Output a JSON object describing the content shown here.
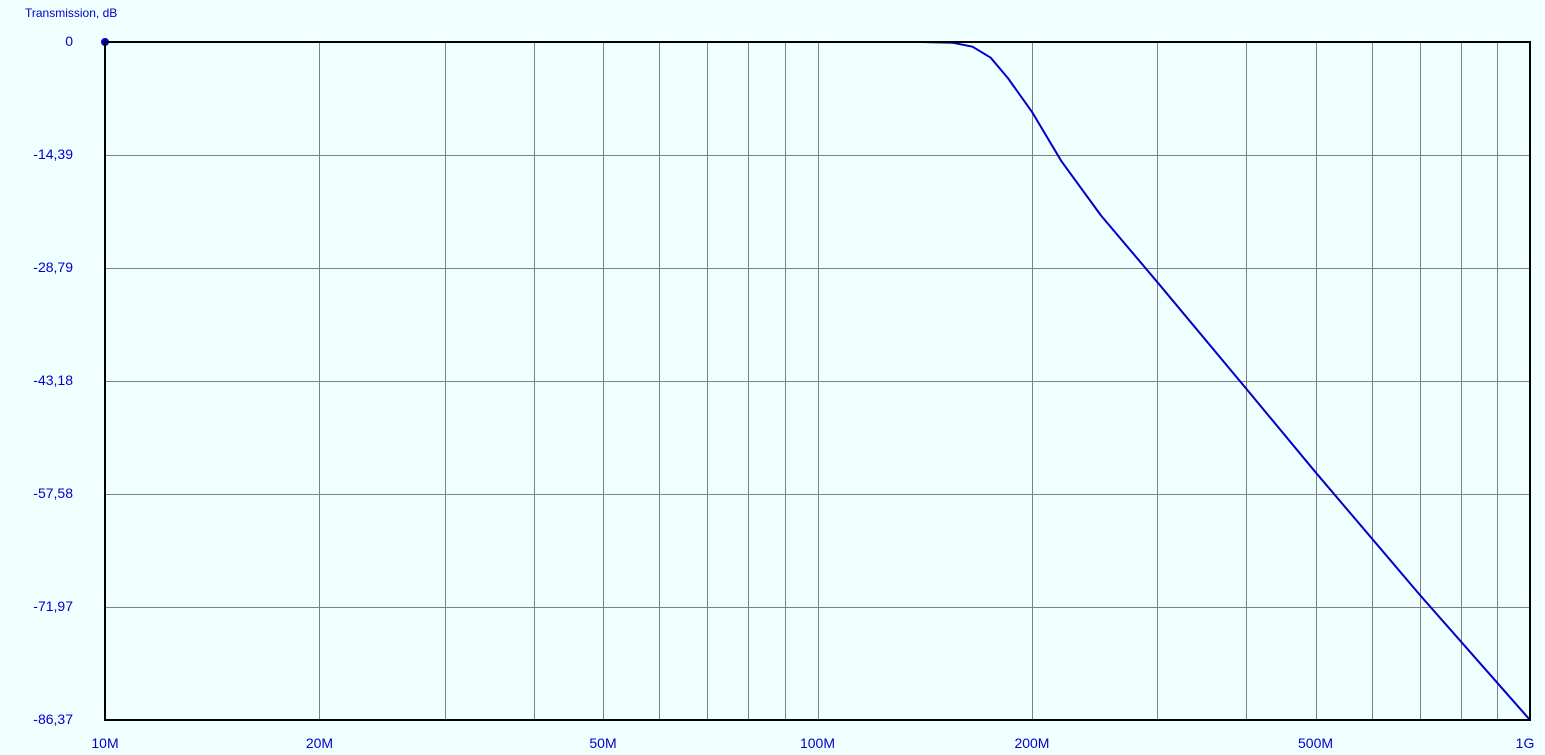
{
  "chart_data": {
    "type": "line",
    "title": "",
    "ylabel": "Transmission, dB",
    "xlabel": "",
    "x_scale": "log",
    "xlim": [
      10000000,
      1000000000
    ],
    "ylim": [
      -86.37,
      0
    ],
    "grid": true,
    "legend": "none",
    "x_tick_labels": [
      {
        "value": 10000000,
        "label": "10M"
      },
      {
        "value": 20000000,
        "label": "20M"
      },
      {
        "value": 50000000,
        "label": "50M"
      },
      {
        "value": 100000000,
        "label": "100M"
      },
      {
        "value": 200000000,
        "label": "200M"
      },
      {
        "value": 500000000,
        "label": "500M"
      },
      {
        "value": 1000000000,
        "label": "1G"
      }
    ],
    "x_grid_values": [
      20000000,
      30000000,
      40000000,
      50000000,
      60000000,
      70000000,
      80000000,
      90000000,
      100000000,
      200000000,
      300000000,
      400000000,
      500000000,
      600000000,
      700000000,
      800000000,
      900000000
    ],
    "y_tick_labels": [
      {
        "value": 0,
        "label": "0"
      },
      {
        "value": -14.39,
        "label": "-14,39"
      },
      {
        "value": -28.79,
        "label": "-28,79"
      },
      {
        "value": -43.18,
        "label": "-43,18"
      },
      {
        "value": -57.58,
        "label": "-57,58"
      },
      {
        "value": -71.97,
        "label": "-71,97"
      },
      {
        "value": -86.37,
        "label": "-86,37"
      }
    ],
    "series": [
      {
        "color": "#0000cc",
        "x": [
          10000000,
          20000000,
          50000000,
          100000000,
          140000000,
          155000000,
          165000000,
          175000000,
          185000000,
          200000000,
          220000000,
          250000000,
          300000000,
          400000000,
          500000000,
          700000000,
          1000000000
        ],
        "y": [
          0,
          0,
          0,
          0,
          0,
          -0.1,
          -0.6,
          -2.0,
          -4.6,
          -8.9,
          -15.2,
          -22.1,
          -30.6,
          -44.2,
          -54.8,
          -70.4,
          -86.37
        ]
      }
    ]
  },
  "colors": {
    "background": "#f0ffff",
    "grid": "#808080",
    "axis": "#000000",
    "label": "#0000cc"
  }
}
